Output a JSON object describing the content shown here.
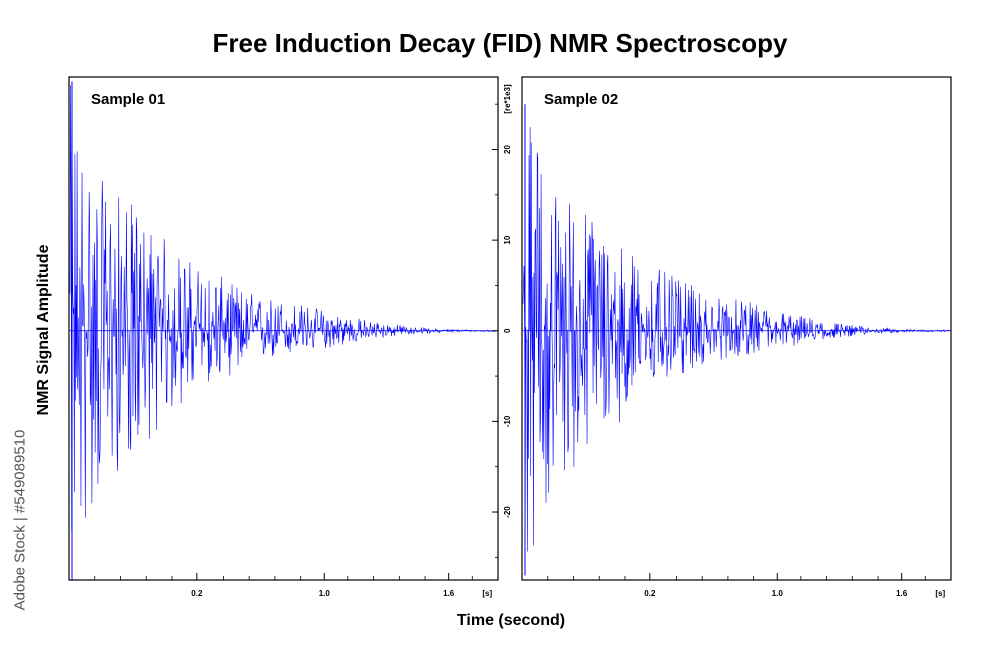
{
  "chart_data": {
    "type": "line",
    "title": "Free Induction Decay (FID) NMR Spectroscopy",
    "xlabel": "Time (second)",
    "ylabel": "NMR Signal Amplitude",
    "x_unit": "[s]",
    "y_unit": "[re*1e3]",
    "xticks": [
      0.2,
      1.0,
      1.6
    ],
    "yticks": [
      -20,
      -10,
      0,
      10,
      20
    ],
    "ylim": [
      -27.5,
      28
    ],
    "series_color": "#0000ff",
    "panels": [
      {
        "title": "Sample 01",
        "series": [
          {
            "envelope_max": [
              27.5,
              17,
              15,
              12,
              9,
              7,
              5.5,
              4,
              3.5,
              2.8,
              2,
              1.3,
              0.8,
              0.4,
              0.2,
              0.1,
              0.1
            ],
            "envelope_min": [
              -27.5,
              -19,
              -15,
              -12,
              -9,
              -6,
              -5,
              -3.5,
              -3,
              -2.3,
              -1.8,
              -1.1,
              -0.7,
              -0.4,
              -0.2,
              -0.1,
              -0.1
            ]
          }
        ]
      },
      {
        "title": "Sample 02",
        "series": [
          {
            "envelope_max": [
              25,
              17,
              15,
              12,
              9,
              7,
              5.5,
              4,
              3.5,
              2.8,
              2,
              1.3,
              0.8,
              0.4,
              0.2,
              0.1,
              0.1
            ],
            "envelope_min": [
              -27,
              -19,
              -15,
              -12,
              -9,
              -6,
              -5,
              -3.5,
              -3,
              -2.3,
              -1.8,
              -1.1,
              -0.7,
              -0.4,
              -0.2,
              -0.1,
              -0.1
            ]
          }
        ]
      }
    ]
  },
  "watermark": "Adobe Stock | #549089510"
}
